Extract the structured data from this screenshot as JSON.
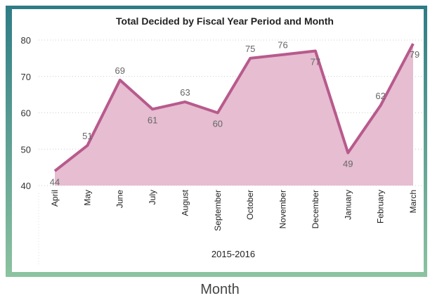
{
  "chart_data": {
    "type": "line",
    "title": "Total Decided by Fiscal Year Period and Month",
    "categories": [
      "April",
      "May",
      "June",
      "July",
      "August",
      "September",
      "October",
      "November",
      "December",
      "January",
      "February",
      "March"
    ],
    "series": [
      {
        "name": "Total Decided",
        "color": "#b85a8c",
        "values": [
          44,
          51,
          69,
          61,
          63,
          60,
          75,
          76,
          77,
          49,
          62,
          79
        ]
      }
    ],
    "area": true,
    "area_color": "#e6bdd1",
    "ylim": [
      40,
      80
    ],
    "yticks": [
      40,
      50,
      60,
      70,
      80
    ],
    "grid": true,
    "x_group_label": "2015-2016",
    "x_label": "Month"
  }
}
